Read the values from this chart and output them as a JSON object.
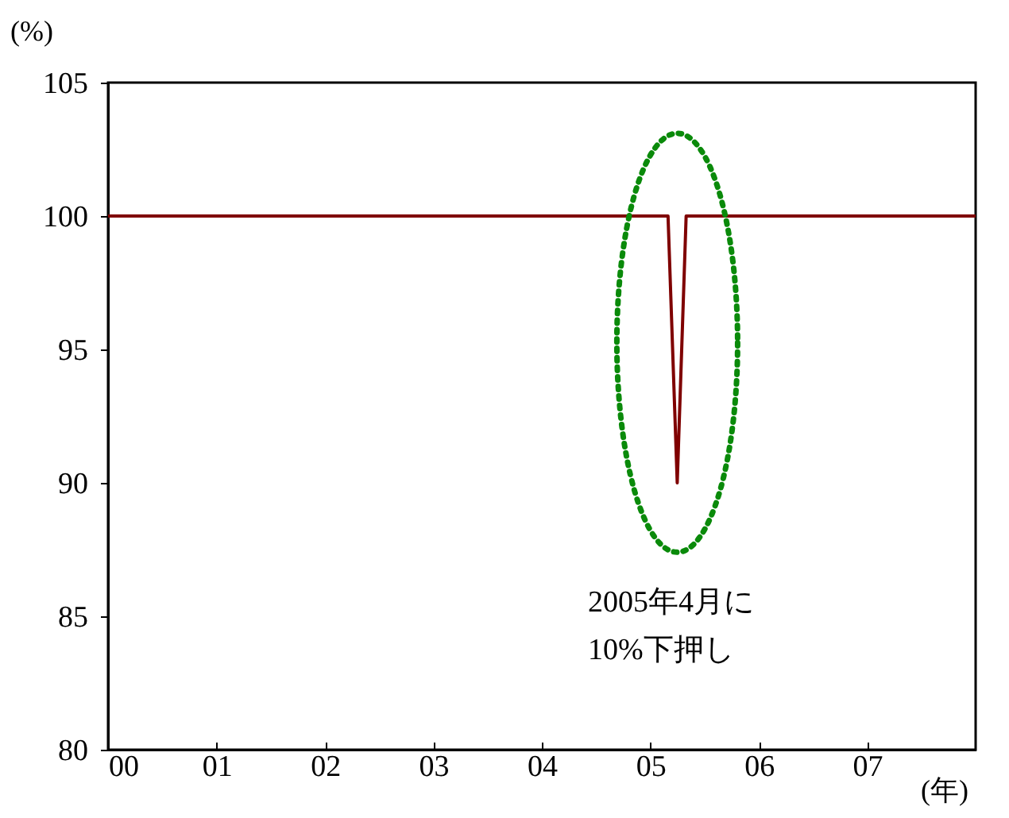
{
  "chart_data": {
    "type": "line",
    "ylabel": "(%)",
    "xlabel": "(年)",
    "x": [
      "2000-01",
      "2005-03",
      "2005-04",
      "2005-05",
      "2008-01"
    ],
    "series": [
      {
        "color": "#7f0000",
        "values": [
          100,
          100,
          90,
          100,
          100
        ]
      }
    ],
    "xlim": [
      "2000-01",
      "2008-01"
    ],
    "xticks": [
      {
        "value": "2000-01",
        "label": "00"
      },
      {
        "value": "2001-01",
        "label": "01"
      },
      {
        "value": "2002-01",
        "label": "02"
      },
      {
        "value": "2003-01",
        "label": "03"
      },
      {
        "value": "2004-01",
        "label": "04"
      },
      {
        "value": "2005-01",
        "label": "05"
      },
      {
        "value": "2006-01",
        "label": "06"
      },
      {
        "value": "2007-01",
        "label": "07"
      }
    ],
    "ylim": [
      80,
      105
    ],
    "yticks": [
      80,
      85,
      90,
      95,
      100,
      105
    ],
    "annotations": [
      "2005年4月に\n10%下押し"
    ],
    "grid": false,
    "marker": "none",
    "line_style": "solid"
  }
}
